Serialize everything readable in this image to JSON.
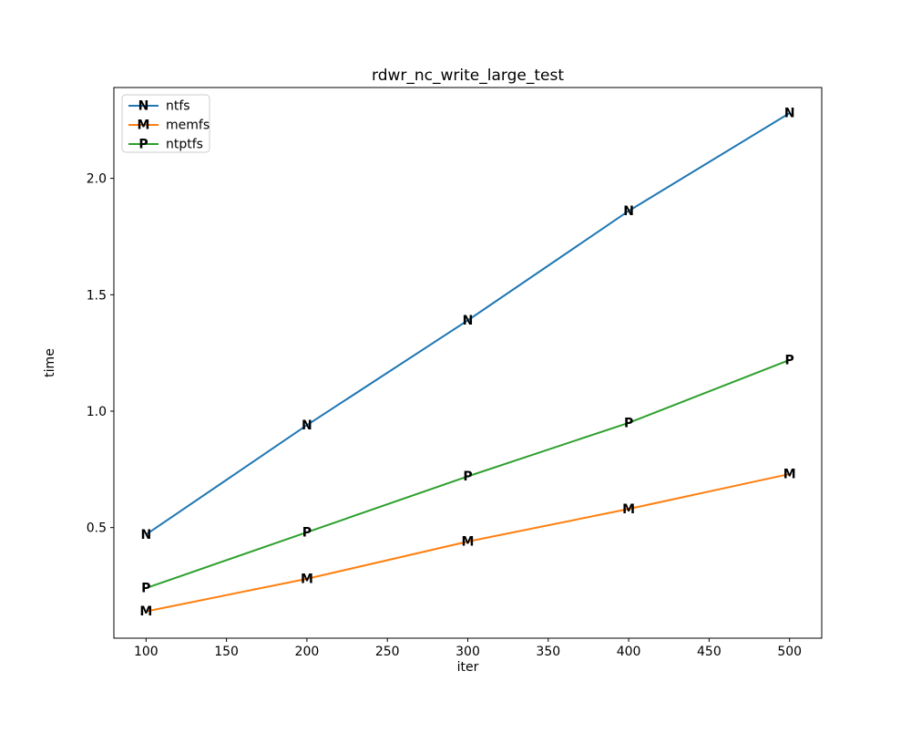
{
  "window": {
    "background": "#ffffff"
  },
  "chart_data": {
    "type": "line",
    "title": "rdwr_nc_write_large_test",
    "xlabel": "iter",
    "ylabel": "time",
    "x": [
      100,
      200,
      300,
      400,
      500
    ],
    "series": [
      {
        "name": "ntfs",
        "marker": "N",
        "color": "#1f77b4",
        "values": [
          0.47,
          0.94,
          1.39,
          1.86,
          2.28
        ]
      },
      {
        "name": "memfs",
        "marker": "M",
        "color": "#ff7f0e",
        "values": [
          0.14,
          0.28,
          0.44,
          0.58,
          0.73
        ]
      },
      {
        "name": "ntptfs",
        "marker": "P",
        "color": "#2ca02c",
        "values": [
          0.24,
          0.48,
          0.72,
          0.95,
          1.22
        ]
      }
    ],
    "xlim": [
      80,
      520
    ],
    "ylim": [
      0.025,
      2.39
    ],
    "xticks": [
      100,
      150,
      200,
      250,
      300,
      350,
      400,
      450,
      500
    ],
    "yticks": [
      "0.5",
      "1.0",
      "1.5",
      "2.0"
    ],
    "grid": false,
    "legend": {
      "position": "upper-left",
      "labels": [
        "ntfs",
        "memfs",
        "ntptfs"
      ]
    }
  }
}
